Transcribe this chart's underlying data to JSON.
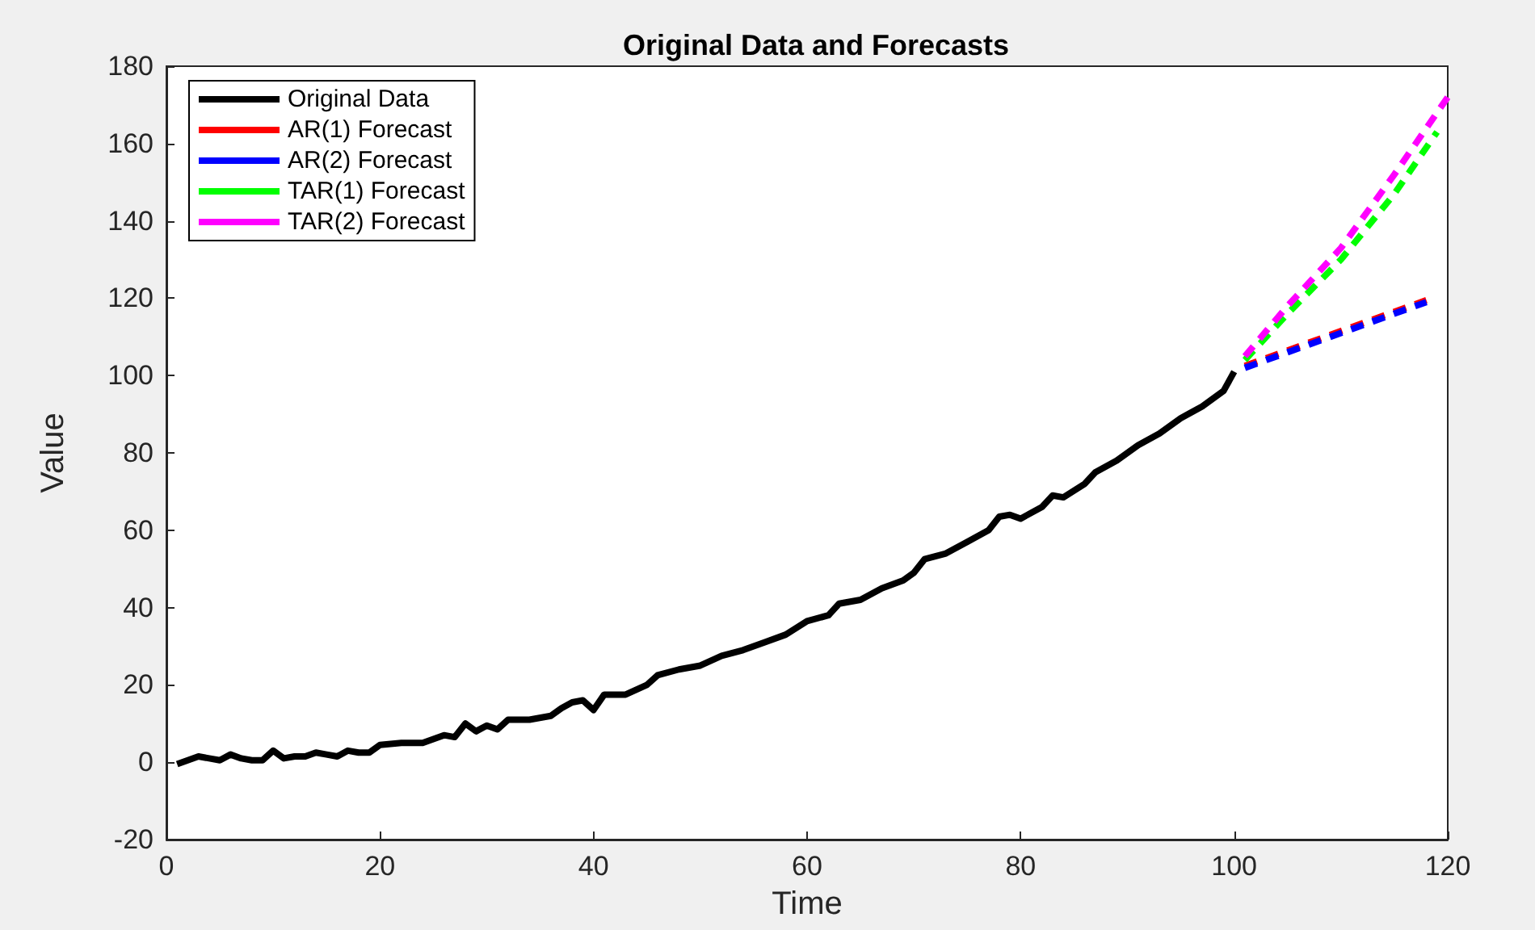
{
  "chart_data": {
    "type": "line",
    "title": "Original Data and Forecasts",
    "xlabel": "Time",
    "ylabel": "Value",
    "xlim": [
      0,
      120
    ],
    "xticks": [
      0,
      20,
      40,
      60,
      80,
      100,
      120
    ],
    "ylim": [
      -20,
      180
    ],
    "yticks": [
      -20,
      0,
      20,
      40,
      60,
      80,
      100,
      120,
      140,
      160,
      180
    ],
    "grid": false,
    "legend": "top left",
    "marker": "none",
    "line_style": "solid",
    "series": [
      {
        "name": "Original Data",
        "color": "#000000",
        "x": [
          1,
          2,
          3,
          4,
          5,
          6,
          7,
          8,
          9,
          10,
          11,
          12,
          13,
          14,
          15,
          16,
          17,
          18,
          19,
          20,
          22,
          24,
          26,
          27,
          28,
          29,
          30,
          31,
          32,
          34,
          36,
          37,
          38,
          39,
          40,
          41,
          43,
          45,
          46,
          48,
          50,
          52,
          54,
          56,
          58,
          60,
          62,
          63,
          65,
          67,
          69,
          70,
          71,
          73,
          75,
          77,
          78,
          79,
          80,
          82,
          83,
          84,
          86,
          87,
          89,
          91,
          93,
          95,
          97,
          99,
          100
        ],
        "values": [
          -0.5,
          0.5,
          1.5,
          1,
          0.5,
          2,
          1,
          0.5,
          0.5,
          3,
          1,
          1.5,
          1.5,
          2.5,
          2,
          1.5,
          3,
          2.5,
          2.5,
          4.5,
          5,
          5,
          7,
          6.5,
          10,
          8,
          9.5,
          8.5,
          11,
          11,
          12,
          14,
          15.5,
          16,
          13.5,
          17.5,
          17.5,
          20,
          22.5,
          24,
          25,
          27.5,
          29,
          31,
          33,
          36.5,
          38,
          41,
          42,
          45,
          47,
          49,
          52.5,
          54,
          57,
          60,
          63.5,
          64,
          63,
          66,
          69,
          68.5,
          72,
          75,
          78,
          82,
          85,
          89,
          92,
          96,
          101
        ]
      },
      {
        "name": "AR(1) Forecast",
        "color": "#ff0000",
        "line_style": "dashed",
        "x": [
          101,
          118
        ],
        "values": [
          102.5,
          119.5
        ]
      },
      {
        "name": "AR(2) Forecast",
        "color": "#0000ff",
        "line_style": "dashed",
        "x": [
          101,
          118
        ],
        "values": [
          102,
          119
        ]
      },
      {
        "name": "TAR(1) Forecast",
        "color": "#00ff00",
        "line_style": "dashed",
        "x": [
          101,
          105,
          110,
          115,
          119
        ],
        "values": [
          104,
          116,
          130,
          147,
          163
        ]
      },
      {
        "name": "TAR(2) Forecast",
        "color": "#ff00ff",
        "line_style": "dashed",
        "x": [
          101,
          105,
          110,
          115,
          120
        ],
        "values": [
          105,
          118,
          133,
          152,
          172
        ]
      }
    ]
  }
}
